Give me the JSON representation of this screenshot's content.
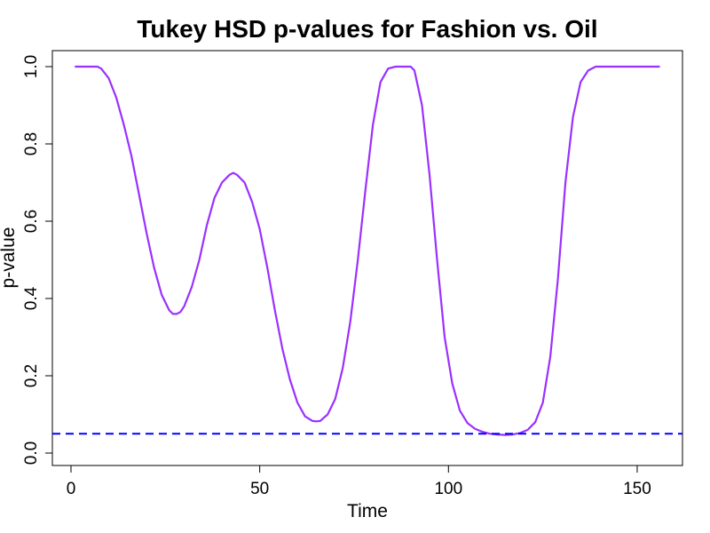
{
  "chart_data": {
    "type": "line",
    "title": "Tukey HSD p-values for Fashion vs. Oil",
    "xlabel": "Time",
    "ylabel": "p-value",
    "xlim": [
      1,
      156
    ],
    "ylim": [
      0,
      1
    ],
    "xticks": [
      0,
      50,
      100,
      150
    ],
    "yticks": [
      0.0,
      0.2,
      0.4,
      0.6,
      0.8,
      1.0
    ],
    "xtick_labels": [
      "0",
      "50",
      "100",
      "150"
    ],
    "ytick_labels": [
      "0.0",
      "0.2",
      "0.4",
      "0.6",
      "0.8",
      "1.0"
    ],
    "grid": false,
    "series": [
      {
        "color": "#9b30ff",
        "style": "solid",
        "x": [
          1,
          5,
          7,
          8,
          10,
          12,
          14,
          16,
          18,
          20,
          22,
          24,
          26,
          27,
          28,
          29,
          30,
          32,
          34,
          36,
          38,
          40,
          42,
          43,
          44,
          46,
          48,
          50,
          52,
          54,
          56,
          58,
          60,
          62,
          64,
          65,
          66,
          68,
          70,
          72,
          74,
          76,
          78,
          80,
          82,
          84,
          86,
          88,
          90,
          91,
          93,
          95,
          97,
          99,
          101,
          103,
          105,
          107,
          109,
          111,
          113,
          115,
          117,
          119,
          121,
          123,
          125,
          127,
          129,
          131,
          133,
          135,
          137,
          139,
          141,
          145,
          150,
          156
        ],
        "y": [
          1.0,
          1.0,
          1.0,
          0.995,
          0.97,
          0.92,
          0.85,
          0.77,
          0.67,
          0.57,
          0.48,
          0.41,
          0.37,
          0.36,
          0.36,
          0.365,
          0.38,
          0.43,
          0.5,
          0.59,
          0.66,
          0.7,
          0.72,
          0.725,
          0.72,
          0.7,
          0.65,
          0.58,
          0.48,
          0.37,
          0.27,
          0.19,
          0.13,
          0.095,
          0.083,
          0.082,
          0.083,
          0.1,
          0.14,
          0.22,
          0.34,
          0.5,
          0.68,
          0.85,
          0.96,
          0.995,
          1.0,
          1.0,
          1.0,
          0.99,
          0.9,
          0.72,
          0.5,
          0.3,
          0.18,
          0.11,
          0.078,
          0.063,
          0.055,
          0.05,
          0.048,
          0.047,
          0.048,
          0.052,
          0.06,
          0.08,
          0.13,
          0.25,
          0.45,
          0.7,
          0.87,
          0.96,
          0.99,
          1.0,
          1.0,
          1.0,
          1.0,
          1.0
        ]
      }
    ],
    "reference_line": {
      "y": 0.05,
      "color": "#0000ff",
      "style": "dashed"
    }
  }
}
